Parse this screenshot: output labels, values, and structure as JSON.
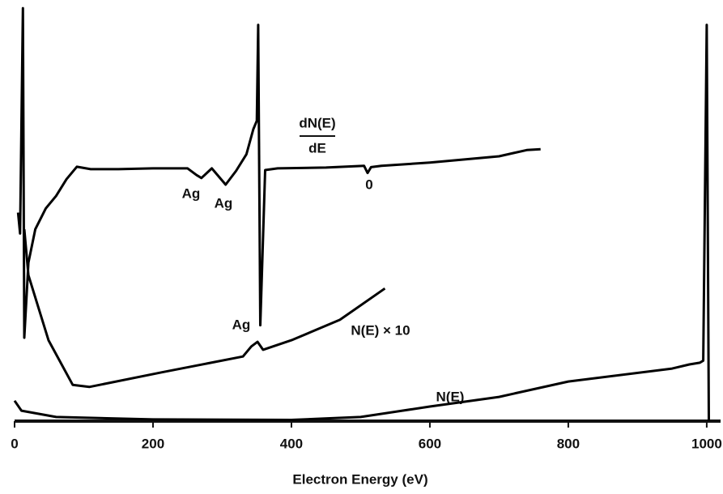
{
  "chart_data": {
    "type": "line",
    "x_label": "Electron Energy (eV)",
    "xlim": [
      0,
      1020
    ],
    "xticks": [
      0,
      200,
      400,
      600,
      800,
      1000
    ],
    "ylim": [
      0,
      100
    ],
    "annotations": [
      "dN(E)",
      "dE",
      "Ag",
      "Ag",
      "0",
      "Ag"
    ],
    "series": [
      {
        "name": "dN(E)/dE",
        "color": "#000000",
        "x": [
          5,
          8,
          12,
          14,
          20,
          30,
          45,
          60,
          75,
          90,
          110,
          150,
          200,
          250,
          263,
          270,
          285,
          305,
          320,
          335,
          345,
          350,
          352,
          355,
          362,
          380,
          450,
          505,
          510,
          515,
          530,
          600,
          700,
          740,
          760
        ],
        "values": [
          50,
          45,
          99,
          20,
          38,
          46,
          51,
          54,
          58,
          61,
          60.4,
          60.4,
          60.6,
          60.6,
          59,
          58.3,
          60.6,
          56.7,
          60,
          64,
          70,
          72,
          95,
          23,
          60.2,
          60.6,
          60.8,
          61.2,
          59.5,
          60.9,
          61.2,
          62,
          63.5,
          65,
          65.2
        ]
      },
      {
        "name": "N(E) × 10",
        "color": "#000000",
        "x": [
          14,
          20,
          49,
          84,
          108,
          213,
          330,
          342,
          351,
          359,
          400,
          470,
          535
        ],
        "values": [
          46,
          35,
          19.4,
          8.7,
          8.2,
          11.7,
          15.5,
          17.9,
          19,
          17.1,
          19.4,
          24.3,
          31.8
        ]
      },
      {
        "name": "N(E)",
        "color": "#000000",
        "x": [
          0,
          10,
          60,
          200,
          400,
          500,
          600,
          700,
          800,
          950,
          975,
          990,
          995,
          1000,
          1003
        ],
        "values": [
          4.9,
          2.5,
          1,
          0.4,
          0.3,
          1,
          3.5,
          5.8,
          9.5,
          12.6,
          13.6,
          14,
          14.5,
          95,
          0
        ]
      }
    ]
  }
}
